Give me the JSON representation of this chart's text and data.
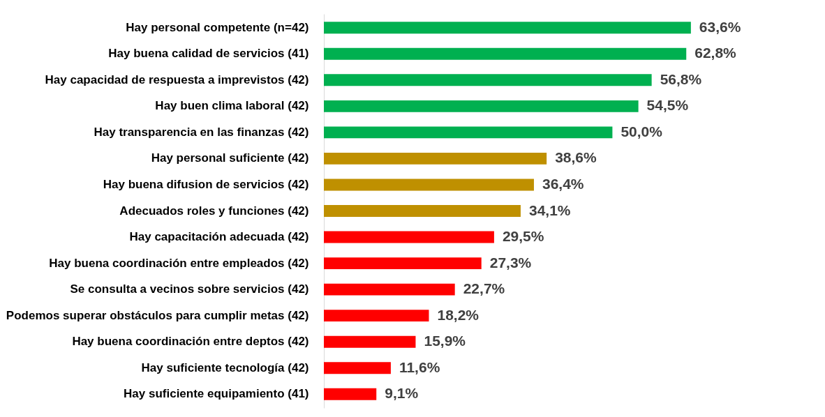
{
  "chart_data": {
    "type": "bar",
    "orientation": "horizontal",
    "categories": [
      "Hay personal competente (n=42)",
      "Hay buena calidad de servicios (41)",
      "Hay capacidad de respuesta a imprevistos (42)",
      "Hay buen clima laboral (42)",
      "Hay transparencia en las finanzas (42)",
      "Hay personal suficiente (42)",
      "Hay buena difusion de servicios (42)",
      "Adecuados roles y funciones (42)",
      "Hay capacitación adecuada (42)",
      "Hay buena coordinación entre empleados (42)",
      "Se consulta a vecinos sobre servicios (42)",
      "Podemos superar obstáculos para cumplir metas (42)",
      "Hay buena coordinación entre deptos (42)",
      "Hay suficiente tecnología (42)",
      "Hay suficiente equipamiento (41)"
    ],
    "values": [
      63.6,
      62.8,
      56.8,
      54.5,
      50.0,
      38.6,
      36.4,
      34.1,
      29.5,
      27.3,
      22.7,
      18.2,
      15.9,
      11.6,
      9.1
    ],
    "colors": [
      "#00b050",
      "#00b050",
      "#00b050",
      "#00b050",
      "#00b050",
      "#bf9000",
      "#bf9000",
      "#bf9000",
      "#ff0000",
      "#ff0000",
      "#ff0000",
      "#ff0000",
      "#ff0000",
      "#ff0000",
      "#ff0000"
    ],
    "value_labels": [
      "63,6%",
      "62,8%",
      "56,8%",
      "54,5%",
      "50,0%",
      "38,6%",
      "36,4%",
      "34,1%",
      "29,5%",
      "27,3%",
      "22,7%",
      "18,2%",
      "15,9%",
      "11,6%",
      "9,1%"
    ]
  }
}
